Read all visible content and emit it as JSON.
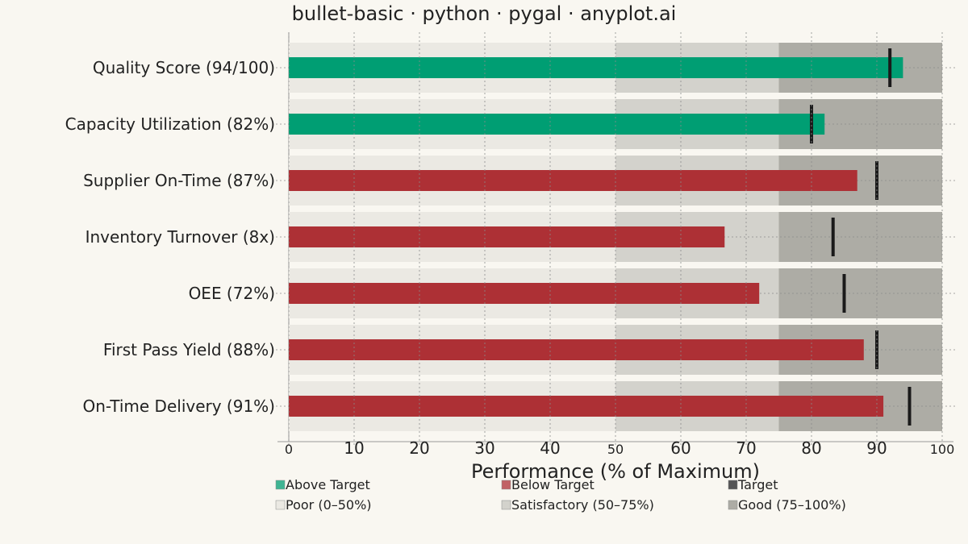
{
  "chart_data": {
    "type": "bar",
    "subtype": "bullet",
    "orientation": "horizontal",
    "title": "bullet-basic · python · pygal · anyplot.ai",
    "xlabel": "Performance (% of Maximum)",
    "ylabel": "",
    "xlim": [
      0,
      100
    ],
    "x_ticks": [
      0,
      10,
      20,
      30,
      40,
      50,
      60,
      70,
      80,
      90,
      100
    ],
    "grid": true,
    "legend_position": "bottom",
    "categories": [
      "Quality Score (94/100)",
      "Capacity Utilization (82%)",
      "Supplier On-Time (87%)",
      "Inventory Turnover (8x)",
      "OEE (72%)",
      "First Pass Yield (88%)",
      "On-Time Delivery (91%)"
    ],
    "values": [
      94,
      82,
      87,
      66.7,
      72,
      88,
      91
    ],
    "targets": [
      92,
      80,
      90,
      83.3,
      85,
      90,
      95
    ],
    "status": [
      "above",
      "above",
      "below",
      "below",
      "below",
      "below",
      "below"
    ],
    "qualitative_ranges": [
      {
        "name": "Poor (0–50%)",
        "from": 0,
        "to": 50,
        "color": "#ebe9e3"
      },
      {
        "name": "Satisfactory (50–75%)",
        "from": 50,
        "to": 75,
        "color": "#d3d2cc"
      },
      {
        "name": "Good (75–100%)",
        "from": 75,
        "to": 100,
        "color": "#adaca5"
      }
    ],
    "legend": [
      {
        "label": "Above Target",
        "color": "#009e73"
      },
      {
        "label": "Below Target",
        "color": "#ad3035"
      },
      {
        "label": "Target",
        "color": "#555555"
      },
      {
        "label": "Poor (0–50%)",
        "color": "#ebe9e3"
      },
      {
        "label": "Satisfactory (50–75%)",
        "color": "#d3d2cc"
      },
      {
        "label": "Good (75–100%)",
        "color": "#adaca5"
      }
    ],
    "colors": {
      "above": "#009e73",
      "below": "#ad3035",
      "target": "#1a1a1a",
      "background": "#f9f7f1",
      "grid": "#8a8a8a"
    }
  }
}
